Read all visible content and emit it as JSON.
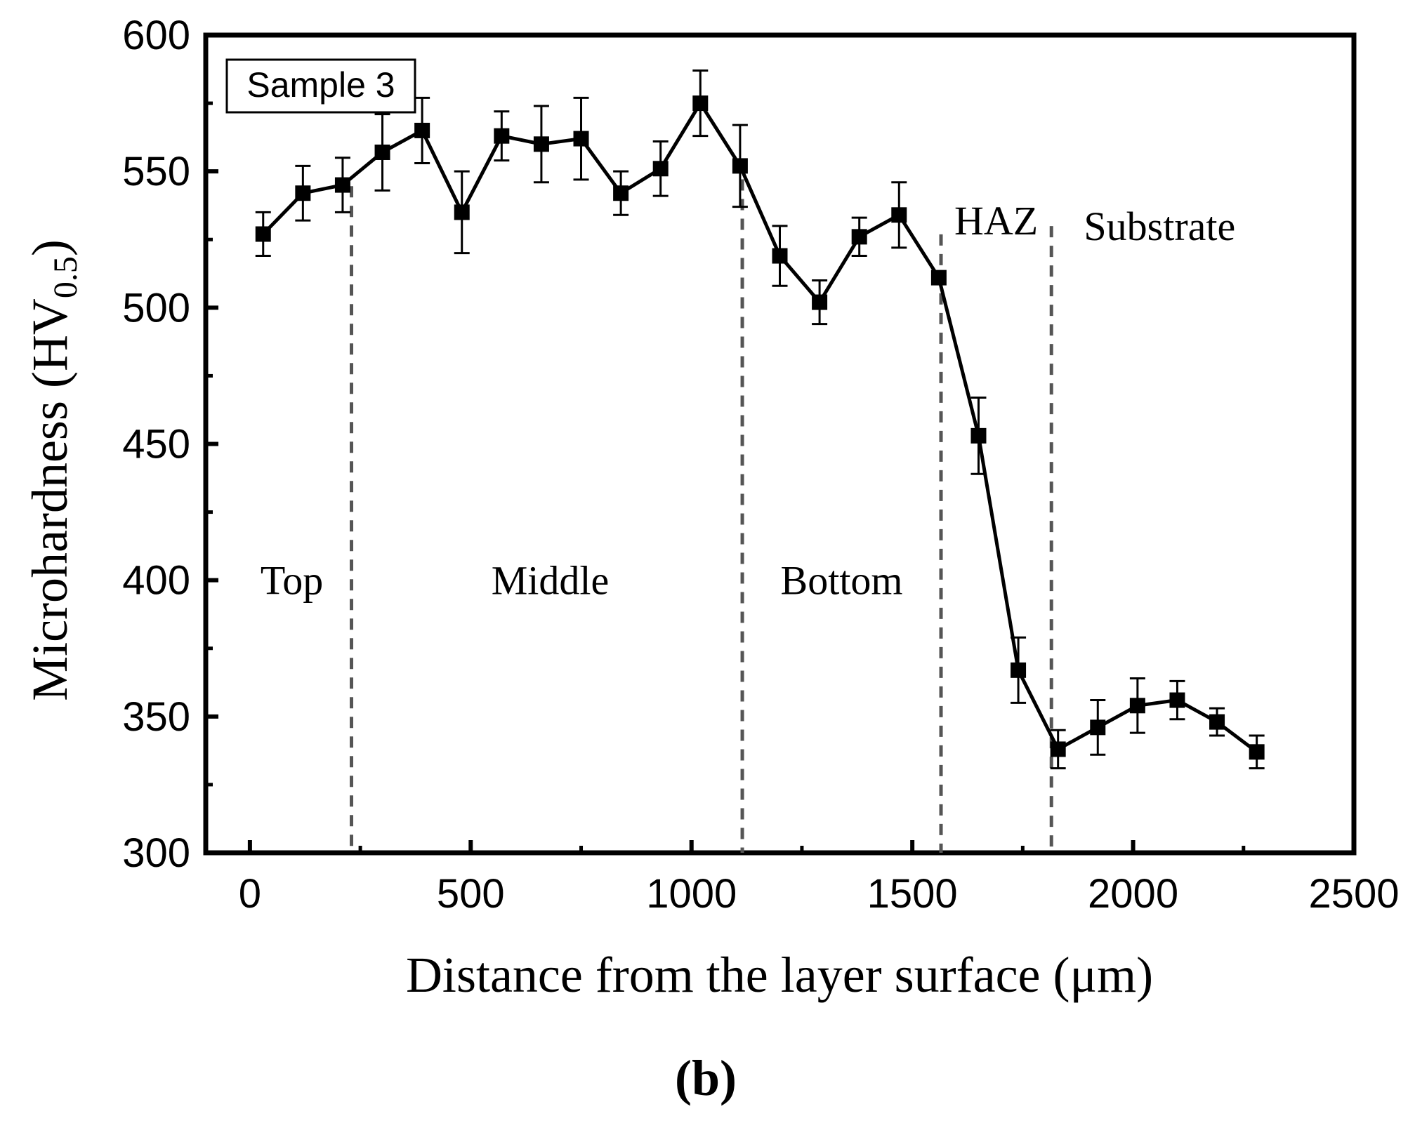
{
  "chart_data": {
    "type": "line",
    "xlabel": "Distance from the layer surface (μm)",
    "ylabel_main": "Microhardness (HV",
    "ylabel_sub": "0.5",
    "ylabel_close": ")",
    "xlim": [
      -100,
      2500
    ],
    "ylim": [
      300,
      600
    ],
    "xticks": [
      0,
      500,
      1000,
      1500,
      2000,
      2500
    ],
    "yticks": [
      300,
      350,
      400,
      450,
      500,
      550,
      600
    ],
    "sample_label": "Sample 3",
    "panel_label": "(b)",
    "x": [
      30,
      120,
      210,
      300,
      390,
      480,
      570,
      660,
      750,
      840,
      930,
      1020,
      1110,
      1200,
      1290,
      1380,
      1470,
      1560,
      1650,
      1740,
      1830,
      1920,
      2010,
      2100,
      2190,
      2280
    ],
    "y": [
      527,
      542,
      545,
      557,
      565,
      535,
      563,
      560,
      562,
      542,
      551,
      575,
      552,
      519,
      502,
      526,
      534,
      511,
      453,
      367,
      338,
      346,
      354,
      356,
      348,
      337
    ],
    "err": [
      8,
      10,
      10,
      14,
      12,
      15,
      9,
      14,
      15,
      8,
      10,
      12,
      15,
      11,
      8,
      7,
      12,
      0,
      14,
      12,
      7,
      10,
      10,
      7,
      5,
      6
    ],
    "region_dividers": [
      230,
      1115,
      1565,
      1815
    ],
    "regions": [
      {
        "label": "Top",
        "x": 95,
        "y": 400
      },
      {
        "label": "Middle",
        "x": 680,
        "y": 400
      },
      {
        "label": "Bottom",
        "x": 1340,
        "y": 400
      },
      {
        "label": "HAZ",
        "x": 1690,
        "y": 532
      },
      {
        "label": "Substrate",
        "x": 2060,
        "y": 530
      }
    ]
  }
}
